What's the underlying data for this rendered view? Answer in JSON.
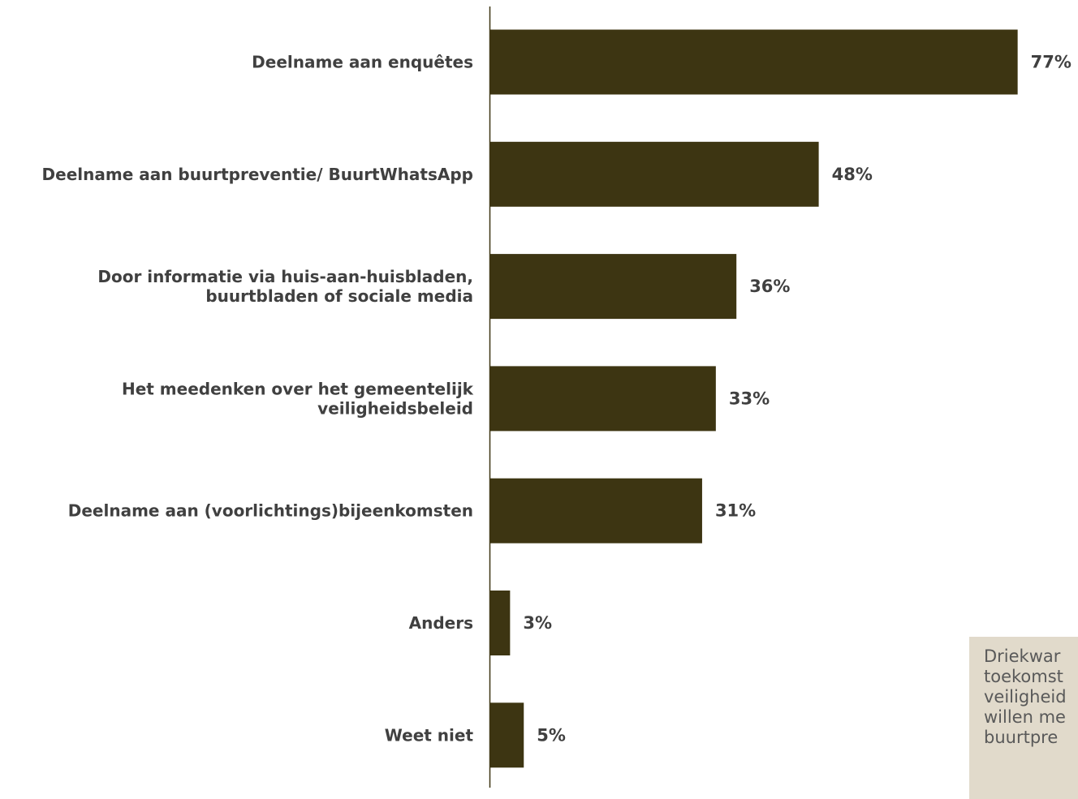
{
  "colors": {
    "bar": "#3d3512",
    "axis": "#3d3512",
    "label_text": "#404040",
    "callout_background": "#e1dacb",
    "callout_text": "#595959"
  },
  "chart_data": {
    "type": "bar",
    "orientation": "horizontal",
    "title": "",
    "xlabel": "",
    "ylabel": "",
    "xlim": [
      0,
      100
    ],
    "grid": false,
    "legend": "none",
    "categories": [
      [
        "Deelname aan enquêtes"
      ],
      [
        "Deelname aan buurtpreventie/ BuurtWhatsApp"
      ],
      [
        "Door informatie via huis-aan-huisbladen,",
        "buurtbladen of sociale media"
      ],
      [
        "Het meedenken over het gemeentelijk",
        "veiligheidsbeleid"
      ],
      [
        "Deelname aan (voorlichtings)bijeenkomsten"
      ],
      [
        "Anders"
      ],
      [
        "Weet niet"
      ]
    ],
    "values": [
      77,
      48,
      36,
      33,
      31,
      3,
      5
    ],
    "value_labels": [
      "77%",
      "48%",
      "36%",
      "33%",
      "31%",
      "3%",
      "5%"
    ]
  },
  "callout": {
    "lines": [
      "Driekwar",
      "toekomst",
      "veiligheid",
      "willen me",
      "buurtpre"
    ]
  }
}
